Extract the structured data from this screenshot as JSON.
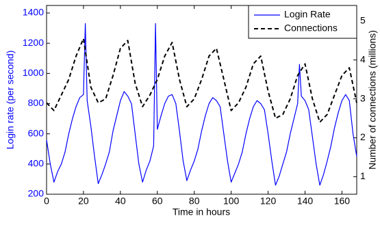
{
  "chart_data": {
    "type": "line",
    "xlabel": "Time in hours",
    "ylabel": "Login rate (per second)",
    "y2label": "Number of connections (millions)",
    "xlim": [
      0,
      168
    ],
    "xticks": [
      0,
      20,
      40,
      60,
      80,
      100,
      120,
      140,
      160
    ],
    "ylim": [
      200,
      1450
    ],
    "yticks": [
      200,
      400,
      600,
      800,
      1000,
      1200,
      1400
    ],
    "y2lim": [
      0.55,
      5.4
    ],
    "y2ticks": [
      1,
      2,
      3,
      4,
      5
    ],
    "legend": "northeast",
    "series": [
      {
        "name": "Login Rate",
        "color": "#0000ff",
        "dash": "solid",
        "x": [
          0,
          2,
          4,
          6,
          8,
          10,
          12,
          14,
          16,
          18,
          20,
          21,
          22,
          24,
          26,
          28,
          30,
          32,
          34,
          36,
          38,
          40,
          42,
          44,
          46,
          48,
          50,
          52,
          54,
          56,
          58,
          59,
          60,
          62,
          64,
          66,
          68,
          70,
          72,
          74,
          76,
          78,
          80,
          82,
          84,
          86,
          88,
          90,
          92,
          94,
          96,
          98,
          100,
          102,
          104,
          106,
          108,
          110,
          112,
          114,
          116,
          118,
          120,
          122,
          124,
          126,
          128,
          130,
          132,
          134,
          136,
          137,
          138,
          140,
          142,
          144,
          146,
          148,
          150,
          152,
          154,
          156,
          158,
          160,
          162,
          164,
          166,
          168
        ],
        "values": [
          560,
          400,
          280,
          350,
          400,
          480,
          600,
          700,
          780,
          840,
          860,
          1330,
          820,
          650,
          450,
          270,
          330,
          400,
          480,
          620,
          720,
          820,
          880,
          850,
          800,
          600,
          400,
          280,
          360,
          420,
          520,
          1330,
          630,
          720,
          800,
          850,
          860,
          800,
          620,
          420,
          290,
          360,
          420,
          500,
          620,
          720,
          800,
          840,
          820,
          780,
          600,
          420,
          280,
          340,
          400,
          480,
          600,
          700,
          780,
          820,
          800,
          760,
          600,
          420,
          260,
          320,
          400,
          480,
          600,
          700,
          800,
          1060,
          850,
          820,
          760,
          580,
          400,
          260,
          330,
          420,
          520,
          640,
          740,
          820,
          860,
          820,
          600,
          450
        ]
      },
      {
        "name": "Connections",
        "color": "#000000",
        "dash": "dashed",
        "axis": "y2",
        "x": [
          0,
          4,
          8,
          12,
          16,
          20,
          24,
          28,
          32,
          36,
          40,
          44,
          48,
          52,
          56,
          60,
          64,
          68,
          72,
          76,
          80,
          84,
          88,
          92,
          96,
          100,
          104,
          108,
          112,
          116,
          120,
          124,
          128,
          132,
          136,
          140,
          144,
          148,
          152,
          156,
          160,
          164,
          168
        ],
        "values": [
          2.9,
          2.7,
          3.1,
          3.5,
          4.1,
          4.55,
          3.3,
          2.9,
          3.0,
          3.6,
          4.3,
          4.5,
          3.4,
          2.8,
          3.1,
          3.5,
          4.1,
          4.45,
          3.5,
          2.8,
          3.0,
          3.5,
          4.1,
          4.3,
          3.5,
          2.7,
          2.9,
          3.3,
          3.9,
          4.1,
          3.2,
          2.5,
          2.6,
          3.0,
          3.6,
          3.9,
          3.0,
          2.4,
          2.6,
          3.1,
          3.6,
          3.8,
          2.9
        ]
      }
    ]
  }
}
